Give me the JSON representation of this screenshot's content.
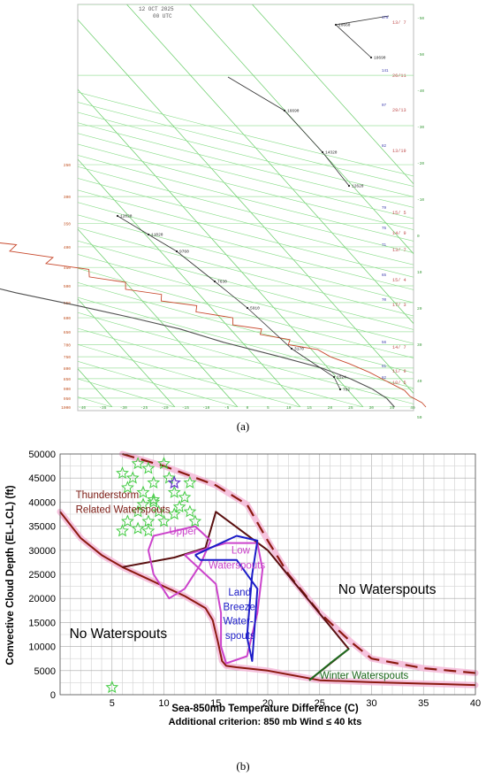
{
  "panel_a": {
    "caption": "(a)",
    "header_date": "12 OCT 2025",
    "header_time": "00 UTC",
    "chart_data": {
      "type": "line",
      "title": "",
      "x_ticks": [
        "-40",
        "-35",
        "-30",
        "-25",
        "-20",
        "-15",
        "-10",
        "-5",
        "0",
        "5",
        "10",
        "15",
        "20",
        "25",
        "30",
        "35",
        "40"
      ],
      "pressure_levels_mb": [
        100,
        150,
        200,
        250,
        300,
        350,
        400,
        450,
        500,
        550,
        600,
        650,
        700,
        750,
        800,
        850,
        900,
        950,
        1000
      ],
      "right_axis_ticks": [
        "-50",
        "-50",
        "-40",
        "-30",
        "-20",
        "-10",
        "0",
        "10",
        "20",
        "30",
        "40",
        "50"
      ],
      "height_labels": [
        "20660",
        "18690",
        "16690",
        "14320",
        "12620",
        "12020",
        "11020",
        "9760",
        "7630",
        "5910",
        "3170",
        "1524",
        "792"
      ],
      "wind_labels": [
        "13/ 7",
        "26/11",
        "29/13",
        "13/19",
        "15/ 5",
        "14/ 9",
        "13/ 7",
        "15/ 4",
        "17/ 3",
        "14/ 7",
        "11/ 9",
        "10/ 5"
      ],
      "wind_speeds": [
        "178",
        "141",
        "97",
        "82",
        "79",
        "75",
        "71",
        "65",
        "70",
        "56",
        "51",
        "82"
      ],
      "series": [
        {
          "name": "temperature",
          "color": "#c84a2e",
          "points_T_p": [
            [
              -44,
              100
            ],
            [
              -46,
              135
            ],
            [
              -48,
              170
            ],
            [
              -51,
              190
            ],
            [
              -50,
              210
            ],
            [
              -52,
              240
            ],
            [
              -48,
              265
            ],
            [
              -44,
              285
            ],
            [
              -39,
              300
            ],
            [
              -35,
              320
            ],
            [
              -32,
              340
            ],
            [
              -31,
              360
            ],
            [
              -27,
              370
            ],
            [
              -28,
              385
            ],
            [
              -22,
              395
            ],
            [
              -24,
              410
            ],
            [
              -18,
              425
            ],
            [
              -20,
              440
            ],
            [
              -14,
              455
            ],
            [
              -15,
              475
            ],
            [
              -10,
              490
            ],
            [
              -11,
              510
            ],
            [
              -6,
              525
            ],
            [
              -7,
              545
            ],
            [
              -2,
              560
            ],
            [
              -3,
              580
            ],
            [
              2,
              600
            ],
            [
              1,
              625
            ],
            [
              5,
              640
            ],
            [
              4,
              660
            ],
            [
              8,
              680
            ],
            [
              7,
              700
            ],
            [
              11,
              720
            ],
            [
              12,
              750
            ],
            [
              14,
              780
            ],
            [
              16,
              820
            ],
            [
              17,
              850
            ],
            [
              18,
              880
            ],
            [
              19,
              910
            ],
            [
              19,
              940
            ],
            [
              20,
              975
            ],
            [
              20,
              1000
            ]
          ]
        },
        {
          "name": "dewpoint",
          "color": "#505050",
          "points_T_p": [
            [
              -52,
              100
            ],
            [
              -60,
              140
            ],
            [
              -63,
              170
            ],
            [
              -67,
              200
            ],
            [
              -70,
              240
            ],
            [
              -72,
              270
            ],
            [
              -66,
              300
            ],
            [
              -61,
              330
            ],
            [
              -54,
              360
            ],
            [
              -48,
              400
            ],
            [
              -42,
              440
            ],
            [
              -36,
              480
            ],
            [
              -29,
              520
            ],
            [
              -21,
              560
            ],
            [
              -14,
              600
            ],
            [
              -8,
              640
            ],
            [
              -3,
              690
            ],
            [
              4,
              750
            ],
            [
              9,
              800
            ],
            [
              12,
              850
            ],
            [
              14,
              900
            ],
            [
              15,
              950
            ],
            [
              15,
              1000
            ]
          ]
        }
      ],
      "height_lines": [
        {
          "labels": [
            "20660",
            "18690"
          ],
          "color": "#333333"
        },
        {
          "labels": [
            "16690",
            "14320",
            "12620"
          ],
          "color": "#333333"
        },
        {
          "labels": [
            "12020",
            "11020",
            "9760",
            "7630",
            "5910",
            "3170",
            "1524",
            "792"
          ],
          "color": "#333333"
        }
      ]
    }
  },
  "panel_b": {
    "caption": "(b)",
    "chart_data": {
      "type": "line",
      "xlabel": "Sea-850mb Temperature Difference (C)",
      "ylabel": "Convective Cloud Depth (EL-LCL) (ft)",
      "subtitle": "Additional criterion: 850 mb Wind ≤ 40 kts",
      "xlim": [
        0,
        40
      ],
      "ylim": [
        0,
        50000
      ],
      "x_ticks": [
        5,
        10,
        15,
        20,
        25,
        30,
        35,
        40
      ],
      "y_ticks": [
        0,
        5000,
        10000,
        15000,
        20000,
        25000,
        30000,
        35000,
        40000,
        45000,
        50000
      ],
      "y_tick_labels": [
        "0",
        "5000",
        "10000",
        "15000",
        "20000",
        "25000",
        "30000",
        "35000",
        "40000",
        "45000",
        "50000"
      ],
      "grid": true,
      "annotations": [
        {
          "text": "Thunderstorm",
          "x": 1.5,
          "y": 40800,
          "color": "#7b1a12"
        },
        {
          "text": "Related Waterspouts",
          "x": 1.5,
          "y": 37800,
          "color": "#7b1a12"
        },
        {
          "text": "Upper",
          "x": 10.5,
          "y": 33300,
          "color": "#cc44cc"
        },
        {
          "text": "Low",
          "x": 16.5,
          "y": 29300,
          "color": "#cc44cc"
        },
        {
          "text": "Waterspouts",
          "x": 14.3,
          "y": 26200,
          "color": "#cc44cc"
        },
        {
          "text": "Land",
          "x": 16.2,
          "y": 20600,
          "color": "#1c1cc8"
        },
        {
          "text": "Breeze",
          "x": 15.7,
          "y": 17600,
          "color": "#1c1cc8"
        },
        {
          "text": "Water-",
          "x": 15.7,
          "y": 14600,
          "color": "#1c1cc8"
        },
        {
          "text": "spouts",
          "x": 15.9,
          "y": 11600,
          "color": "#1c1cc8"
        },
        {
          "text": "No Waterspouts",
          "x": 26.8,
          "y": 21000,
          "color": "#000000"
        },
        {
          "text": "No Waterspouts",
          "x": 0.9,
          "y": 11800,
          "color": "#000000"
        },
        {
          "text": "Winter Waterspouts",
          "x": 25.0,
          "y": 3300,
          "color": "#1e6b1e"
        }
      ],
      "series": [
        {
          "name": "lower-boundary",
          "style": "solid",
          "color": "#8b1a10",
          "x": [
            0,
            2,
            4,
            6,
            8,
            10,
            12,
            14,
            14.7,
            15.2,
            15.6,
            16,
            17,
            20,
            25,
            30,
            35,
            40
          ],
          "y": [
            38000,
            32500,
            29000,
            26500,
            24500,
            22500,
            20500,
            18000,
            15500,
            11000,
            7000,
            6000,
            5700,
            5000,
            3000,
            2600,
            2300,
            2000
          ]
        },
        {
          "name": "upper-boundary",
          "style": "dashed",
          "color": "#8b1a10",
          "x": [
            6,
            10,
            15,
            18,
            20,
            22,
            25,
            28,
            30,
            35,
            40
          ],
          "y": [
            50000,
            47500,
            43500,
            39500,
            32000,
            25000,
            17000,
            11000,
            7500,
            5500,
            4500
          ]
        },
        {
          "name": "thunderstorm-region-edge",
          "style": "solid",
          "color": "#5a1010",
          "x": [
            6,
            11,
            14,
            15,
            20,
            27.8,
            24
          ],
          "y": [
            26500,
            28500,
            30500,
            38000,
            30000,
            9500,
            3000
          ]
        },
        {
          "name": "upper-waterspouts",
          "style": "solid",
          "color": "#cc44cc",
          "x": [
            10,
            13,
            14.5,
            13.5,
            12,
            10.5,
            9,
            8.5,
            9,
            10
          ],
          "y": [
            33500,
            35000,
            32000,
            27000,
            22000,
            20000,
            25000,
            30000,
            33000,
            33500
          ]
        },
        {
          "name": "low-waterspouts",
          "style": "solid",
          "color": "#cc44cc",
          "x": [
            12,
            16,
            19,
            19.5,
            19,
            18,
            16,
            15.5,
            15.5,
            15,
            13,
            12
          ],
          "y": [
            29000,
            31500,
            31500,
            26000,
            17000,
            8000,
            6500,
            10000,
            17000,
            23000,
            27000,
            29000
          ]
        },
        {
          "name": "land-breeze-waterspouts",
          "style": "solid",
          "color": "#1c1cc8",
          "x": [
            13,
            17,
            19,
            18.5,
            18,
            18.5,
            19,
            17,
            13.5,
            13
          ],
          "y": [
            29000,
            33000,
            32000,
            25000,
            12000,
            7000,
            22000,
            28000,
            28000,
            29000
          ]
        },
        {
          "name": "winter-waterspouts",
          "style": "solid",
          "color": "#1e6b1e",
          "x": [
            24,
            26,
            27.8
          ],
          "y": [
            3000,
            6500,
            9500
          ]
        }
      ],
      "stars_green": [
        [
          5,
          1500
        ],
        [
          6,
          46000
        ],
        [
          6.5,
          43000
        ],
        [
          7,
          45000
        ],
        [
          7.5,
          48000
        ],
        [
          8,
          42000
        ],
        [
          8.5,
          47000
        ],
        [
          9,
          44000
        ],
        [
          9,
          40000
        ],
        [
          10,
          48000
        ],
        [
          10.5,
          45000
        ],
        [
          11,
          42000
        ],
        [
          11.5,
          39000
        ],
        [
          12,
          41000
        ],
        [
          12.5,
          44000
        ],
        [
          6.5,
          36000
        ],
        [
          7.5,
          38000
        ],
        [
          8.5,
          36000
        ],
        [
          9.5,
          38000
        ],
        [
          6,
          34000
        ],
        [
          7.5,
          34500
        ],
        [
          8.5,
          34000
        ],
        [
          10,
          36000
        ],
        [
          11,
          37500
        ],
        [
          12.5,
          38000
        ],
        [
          13,
          36000
        ],
        [
          9,
          40500
        ],
        [
          8,
          39500
        ]
      ],
      "stars_purple": [
        [
          11,
          44000
        ]
      ]
    }
  }
}
